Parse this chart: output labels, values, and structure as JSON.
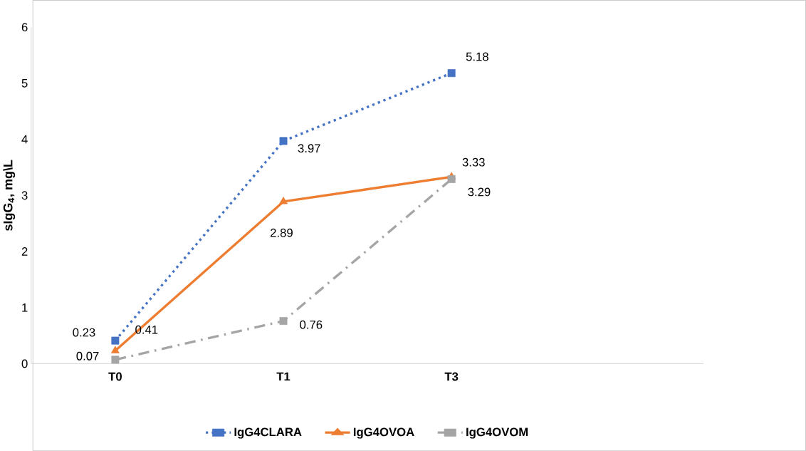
{
  "chart_data": {
    "type": "line",
    "categories": [
      "T0",
      "T1",
      "T3",
      null
    ],
    "series": [
      {
        "name": "IgG4CLARA",
        "color": "#4472c4",
        "values": [
          0.41,
          3.97,
          5.18,
          null
        ],
        "marker": "square",
        "line_style": "dotted"
      },
      {
        "name": "IgG4OVOA",
        "color": "#ed7d31",
        "values": [
          0.23,
          2.89,
          3.33,
          null
        ],
        "marker": "triangle",
        "line_style": "solid"
      },
      {
        "name": "IgG4OVOM",
        "color": "#a5a5a5",
        "values": [
          0.07,
          0.76,
          3.29,
          null
        ],
        "marker": "square",
        "line_style": "dashed"
      }
    ],
    "ylabel": "sIgG$_{4}$, mg\\L",
    "ylim": [
      0,
      6
    ],
    "yticks": [
      0,
      1,
      2,
      3,
      4,
      5,
      6
    ],
    "data_labels": true,
    "grid": false,
    "legend": "bottom"
  }
}
